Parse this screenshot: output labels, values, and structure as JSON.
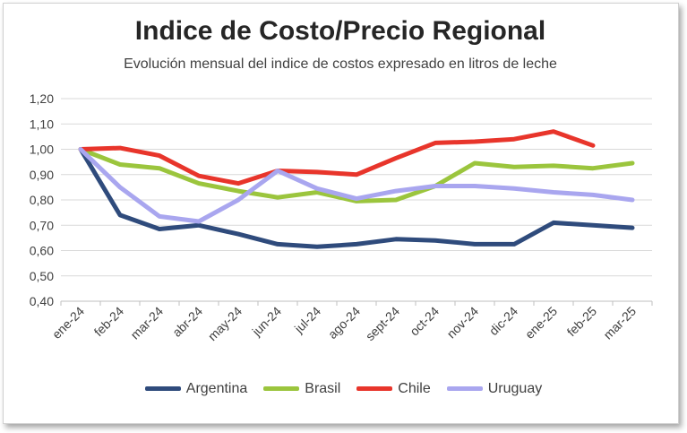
{
  "chart_data": {
    "type": "line",
    "title": "Indice de Costo/Precio Regional",
    "subtitle": "Evolución mensual del indice de costos expresado en litros de leche",
    "categories": [
      "ene-24",
      "feb-24",
      "mar-24",
      "abr-24",
      "may-24",
      "jun-24",
      "jul-24",
      "ago-24",
      "sept-24",
      "oct-24",
      "nov-24",
      "dic-24",
      "ene-25",
      "feb-25",
      "mar-25"
    ],
    "ylim": [
      0.4,
      1.2
    ],
    "yticks": [
      "0,40",
      "0,50",
      "0,60",
      "0,70",
      "0,80",
      "0,90",
      "1,00",
      "1,10",
      "1,20"
    ],
    "ytick_values": [
      0.4,
      0.5,
      0.6,
      0.7,
      0.8,
      0.9,
      1.0,
      1.1,
      1.2
    ],
    "grid": true,
    "legend_position": "bottom",
    "series": [
      {
        "name": "Argentina",
        "color": "#2f4b7c",
        "values": [
          1.0,
          0.74,
          0.685,
          0.7,
          0.665,
          0.625,
          0.615,
          0.625,
          0.645,
          0.64,
          0.625,
          0.625,
          0.71,
          0.7,
          0.69
        ]
      },
      {
        "name": "Brasil",
        "color": "#9bc53d",
        "values": [
          1.0,
          0.94,
          0.925,
          0.865,
          0.835,
          0.81,
          0.83,
          0.795,
          0.8,
          0.855,
          0.945,
          0.93,
          0.935,
          0.925,
          0.945
        ]
      },
      {
        "name": "Chile",
        "color": "#e8352b",
        "values": [
          1.0,
          1.005,
          0.975,
          0.895,
          0.865,
          0.915,
          0.91,
          0.9,
          0.965,
          1.025,
          1.03,
          1.04,
          1.07,
          1.015,
          null
        ]
      },
      {
        "name": "Uruguay",
        "color": "#a9a6ef",
        "values": [
          1.0,
          0.85,
          0.735,
          0.715,
          0.8,
          0.915,
          0.845,
          0.805,
          0.835,
          0.855,
          0.855,
          0.845,
          0.83,
          0.82,
          0.8
        ]
      }
    ]
  }
}
